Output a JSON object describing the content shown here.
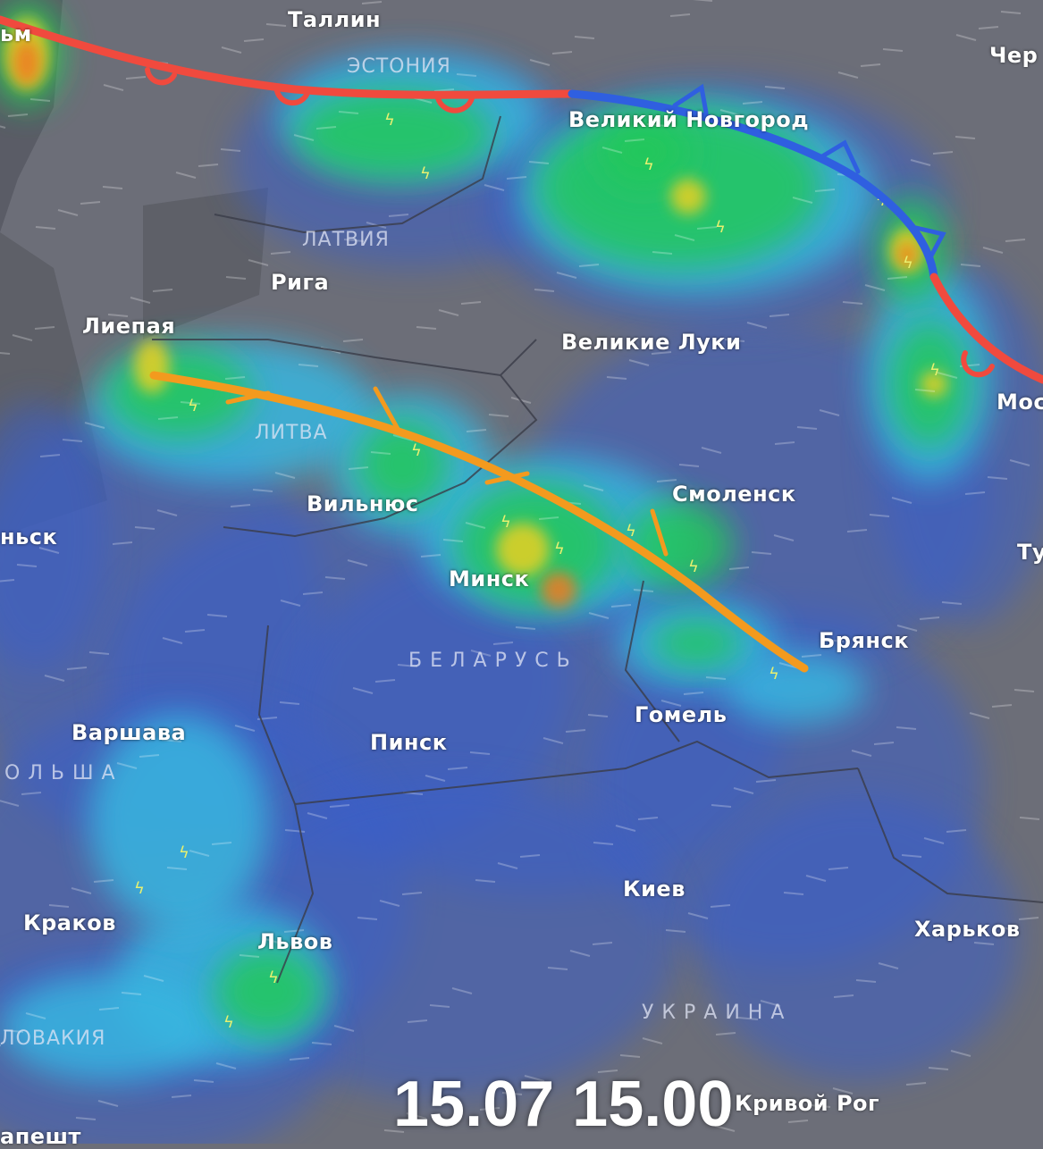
{
  "map": {
    "timestamp": "15.07 15.00",
    "cities": [
      "Таллин",
      "Великий Новгород",
      "Чер",
      "Рига",
      "Лиепая",
      "Великие Луки",
      "Мос",
      "Вильнюс",
      "Смоленск",
      "Ту",
      "Минск",
      "Брянск",
      "Гомель",
      "Варшава",
      "Пинск",
      "Киев",
      "Харьков",
      "Краков",
      "Львов",
      "Кривой Рог",
      "апешт",
      "ньск",
      "ьм"
    ],
    "countries": [
      "ЭСТОНИЯ",
      "ЛАТВИЯ",
      "ЛИТВА",
      "БЕЛАРУСЬ",
      "ОЛЬША",
      "УКРАИНА",
      "ЛОВАКИЯ"
    ],
    "fronts": [
      {
        "type": "warm",
        "color": "#f04a3e"
      },
      {
        "type": "cold",
        "color": "#2f5fe0"
      },
      {
        "type": "warm",
        "color": "#f04a3e"
      },
      {
        "type": "cold",
        "color": "#f39a1e"
      }
    ],
    "precipitation_colors": [
      "#3a5fc8",
      "#38b6e0",
      "#22c85a",
      "#e8d020",
      "#f07a20"
    ],
    "icons": [
      "lightning-icon"
    ]
  }
}
